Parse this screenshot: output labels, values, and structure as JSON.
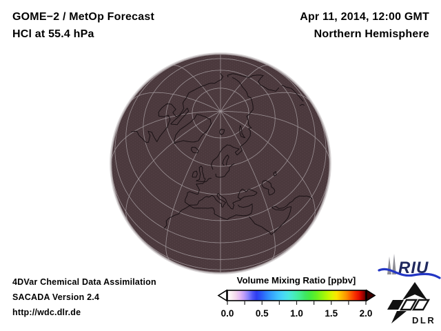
{
  "header": {
    "product": "GOME−2 / MetOp Forecast",
    "field": "HCl at 55.4 hPa",
    "datetime": "Apr 11, 2014, 12:00 GMT",
    "region": "Northern Hemisphere"
  },
  "globe": {
    "graticule_lon_step_deg": 30,
    "graticule_lat_step_deg": 15,
    "colors": {
      "surface": "#4b393d",
      "stipple": "#614c51",
      "graticule": "#a69da0",
      "coastline": "#191114",
      "rim": "#a9a1a3"
    }
  },
  "colorbar": {
    "title": "Volume Mixing Ratio [ppbv]",
    "tick_labels": [
      "0.0",
      "0.5",
      "1.0",
      "1.5",
      "2.0"
    ],
    "min": 0.0,
    "max": 2.0,
    "minor_tick_interval": 0.25,
    "left_arrow_color": "#ffffff",
    "right_arrow_color": "#3f0000",
    "gradient_stops": [
      [
        0.0,
        "#ffffff"
      ],
      [
        0.03,
        "#fbeef3"
      ],
      [
        0.06,
        "#f3d6ec"
      ],
      [
        0.09,
        "#e4baf3"
      ],
      [
        0.12,
        "#bf9cf9"
      ],
      [
        0.15,
        "#8a82fb"
      ],
      [
        0.18,
        "#5158f7"
      ],
      [
        0.21,
        "#2e3cf1"
      ],
      [
        0.24,
        "#2a55f6"
      ],
      [
        0.28,
        "#2e7ffb"
      ],
      [
        0.32,
        "#35a3fd"
      ],
      [
        0.36,
        "#3fc0fd"
      ],
      [
        0.4,
        "#47d7f8"
      ],
      [
        0.44,
        "#4ae7e2"
      ],
      [
        0.48,
        "#47edbc"
      ],
      [
        0.52,
        "#44ee93"
      ],
      [
        0.56,
        "#3fe765"
      ],
      [
        0.6,
        "#46eb3d"
      ],
      [
        0.64,
        "#63f023"
      ],
      [
        0.68,
        "#8ef511"
      ],
      [
        0.72,
        "#b9f903"
      ],
      [
        0.76,
        "#e3f400"
      ],
      [
        0.79,
        "#fde400"
      ],
      [
        0.82,
        "#fdc000"
      ],
      [
        0.86,
        "#fd9000"
      ],
      [
        0.89,
        "#fc5f00"
      ],
      [
        0.92,
        "#f93000"
      ],
      [
        0.95,
        "#e60f00"
      ],
      [
        0.97,
        "#b80300"
      ],
      [
        0.99,
        "#7c0000"
      ],
      [
        1.0,
        "#4a0000"
      ]
    ]
  },
  "footer": {
    "line1": "4DVar Chemical Data Assimilation",
    "line2": "SACADA Version 2.4",
    "line3": "http://wdc.dlr.de"
  },
  "logos": {
    "riu": {
      "text": "RIU",
      "text_color": "#20295f",
      "wave_color": "#2336c4",
      "cathedral_color": "#8d8d95"
    },
    "dlr": {
      "text": "DLR",
      "color": "#111111"
    }
  }
}
